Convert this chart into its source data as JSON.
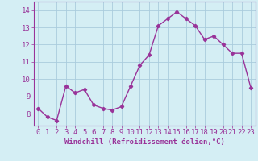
{
  "x": [
    0,
    1,
    2,
    3,
    4,
    5,
    6,
    7,
    8,
    9,
    10,
    11,
    12,
    13,
    14,
    15,
    16,
    17,
    18,
    19,
    20,
    21,
    22,
    23
  ],
  "y": [
    8.3,
    7.8,
    7.6,
    9.6,
    9.2,
    9.4,
    8.5,
    8.3,
    8.2,
    8.4,
    9.6,
    10.8,
    11.4,
    13.1,
    13.5,
    13.9,
    13.5,
    13.1,
    12.3,
    12.5,
    12.0,
    11.5,
    11.5,
    9.5
  ],
  "line_color": "#993399",
  "marker": "D",
  "markersize": 2.2,
  "xlabel": "Windchill (Refroidissement éolien,°C)",
  "xlim": [
    -0.5,
    23.5
  ],
  "ylim": [
    7.3,
    14.5
  ],
  "yticks": [
    8,
    9,
    10,
    11,
    12,
    13,
    14
  ],
  "xticks": [
    0,
    1,
    2,
    3,
    4,
    5,
    6,
    7,
    8,
    9,
    10,
    11,
    12,
    13,
    14,
    15,
    16,
    17,
    18,
    19,
    20,
    21,
    22,
    23
  ],
  "bg_color": "#d4eef4",
  "grid_color": "#aaccdd",
  "label_color": "#993399",
  "xlabel_fontsize": 6.5,
  "tick_fontsize": 6.5,
  "linewidth": 1.0
}
